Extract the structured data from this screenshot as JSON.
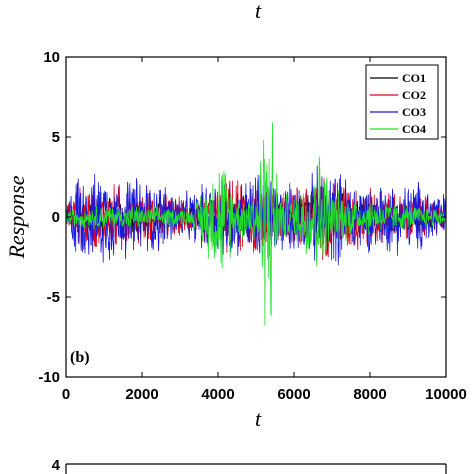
{
  "top_axis_label": "t",
  "bottom_tick_label": "4",
  "chart_data": {
    "type": "line",
    "panel_label": "(b)",
    "xlabel": "t",
    "ylabel": "Response",
    "xlim": [
      0,
      10000
    ],
    "ylim": [
      -10,
      10
    ],
    "x_ticks": [
      0,
      2000,
      4000,
      6000,
      8000,
      10000
    ],
    "y_ticks": [
      10,
      5,
      0,
      -5,
      -10
    ],
    "grid": false,
    "legend_position": "top-right",
    "series": [
      {
        "name": "CO1",
        "color": "#000000",
        "envelope": [
          [
            0,
            0.6
          ],
          [
            300,
            1.2
          ],
          [
            1000,
            1.5
          ],
          [
            1800,
            1.2
          ],
          [
            2600,
            1.0
          ],
          [
            3300,
            0.8
          ],
          [
            4100,
            1.6
          ],
          [
            5000,
            1.8
          ],
          [
            5800,
            1.4
          ],
          [
            6700,
            2.0
          ],
          [
            7700,
            1.6
          ],
          [
            8600,
            1.2
          ],
          [
            9400,
            1.0
          ],
          [
            10000,
            0.8
          ]
        ]
      },
      {
        "name": "CO2",
        "color": "#e0001a",
        "envelope": [
          [
            0,
            0.8
          ],
          [
            300,
            2.2
          ],
          [
            1000,
            2.5
          ],
          [
            1800,
            2.0
          ],
          [
            2600,
            1.6
          ],
          [
            3300,
            1.2
          ],
          [
            4100,
            2.5
          ],
          [
            5000,
            2.8
          ],
          [
            5800,
            2.2
          ],
          [
            6700,
            3.0
          ],
          [
            7700,
            2.4
          ],
          [
            8600,
            1.8
          ],
          [
            9400,
            1.6
          ],
          [
            10000,
            1.2
          ]
        ]
      },
      {
        "name": "CO3",
        "color": "#1a1adc",
        "envelope": [
          [
            0,
            1.0
          ],
          [
            300,
            3.3
          ],
          [
            700,
            2.8
          ],
          [
            1000,
            3.5
          ],
          [
            1400,
            2.8
          ],
          [
            1800,
            3.0
          ],
          [
            2200,
            2.6
          ],
          [
            2600,
            2.5
          ],
          [
            3000,
            1.6
          ],
          [
            3300,
            1.8
          ],
          [
            3700,
            2.5
          ],
          [
            4100,
            3.4
          ],
          [
            4600,
            2.6
          ],
          [
            5000,
            3.4
          ],
          [
            5400,
            3.0
          ],
          [
            5800,
            2.4
          ],
          [
            6300,
            2.4
          ],
          [
            6700,
            3.8
          ],
          [
            7200,
            3.2
          ],
          [
            7700,
            2.6
          ],
          [
            8200,
            2.2
          ],
          [
            8600,
            2.6
          ],
          [
            9000,
            2.4
          ],
          [
            9400,
            2.6
          ],
          [
            10000,
            1.6
          ]
        ]
      },
      {
        "name": "CO4",
        "color": "#22e02c",
        "envelope": [
          [
            0,
            0.6
          ],
          [
            1000,
            0.9
          ],
          [
            1800,
            0.8
          ],
          [
            2600,
            0.7
          ],
          [
            3300,
            0.6
          ],
          [
            4100,
            4.5
          ],
          [
            4500,
            1.4
          ],
          [
            5000,
            2.0
          ],
          [
            5200,
            7.5
          ],
          [
            5400,
            8.3
          ],
          [
            5600,
            2.0
          ],
          [
            6000,
            1.4
          ],
          [
            6700,
            4.8
          ],
          [
            7000,
            2.0
          ],
          [
            7700,
            1.4
          ],
          [
            8600,
            1.0
          ],
          [
            10000,
            0.6
          ]
        ]
      }
    ]
  }
}
